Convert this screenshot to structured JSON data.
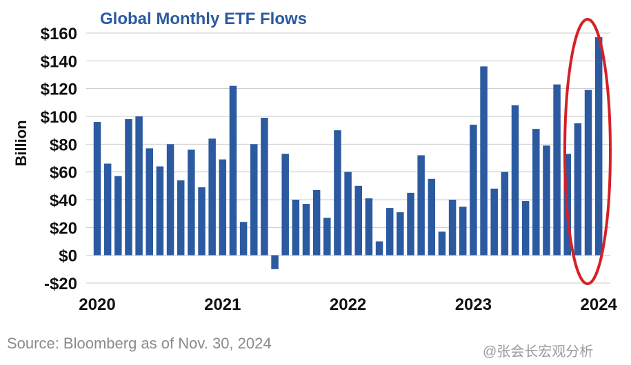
{
  "chart_data": {
    "type": "bar",
    "title": "Global Monthly ETF Flows",
    "ylabel": "Billion",
    "xlabel": "",
    "ylim": [
      -20,
      160
    ],
    "yticks": [
      {
        "value": 160,
        "label": "$160"
      },
      {
        "value": 140,
        "label": "$140"
      },
      {
        "value": 120,
        "label": "$120"
      },
      {
        "value": 100,
        "label": "$100"
      },
      {
        "value": 80,
        "label": "$80"
      },
      {
        "value": 60,
        "label": "$60"
      },
      {
        "value": 40,
        "label": "$40"
      },
      {
        "value": 20,
        "label": "$20"
      },
      {
        "value": 0,
        "label": "$0"
      },
      {
        "value": -20,
        "label": "-$20"
      }
    ],
    "xticks": [
      "2020",
      "2021",
      "2022",
      "2023",
      "2024"
    ],
    "grid": true,
    "bar_color": "#2c5aa0",
    "highlight": {
      "shape": "ellipse",
      "color": "#d62027",
      "months": [
        "2024-10",
        "2024-11"
      ]
    },
    "series": [
      {
        "values": [
          96,
          66,
          57,
          98,
          100,
          77,
          64,
          80,
          54,
          76,
          49,
          84,
          69,
          122,
          24,
          80,
          99,
          -10,
          73,
          40,
          37,
          47,
          27,
          90,
          60,
          50,
          41,
          10,
          34,
          31,
          45,
          72,
          55,
          17,
          40,
          35,
          94,
          136,
          48,
          60,
          108,
          39,
          91,
          79,
          123,
          73,
          95,
          119,
          157
        ]
      }
    ]
  },
  "source": "Source: Bloomberg as of Nov. 30, 2024",
  "watermark": "@张会长宏观分析"
}
